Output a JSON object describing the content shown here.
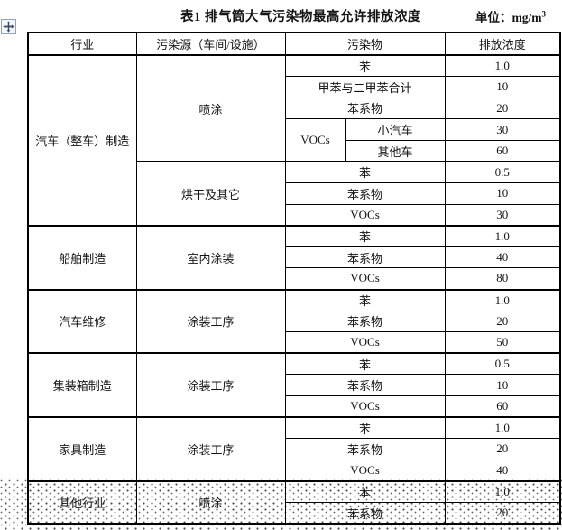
{
  "page": {
    "title": "表1 排气筒大气污染物最高允许排放浓度",
    "unit_prefix": "单位：mg/m",
    "unit_sup": "3"
  },
  "icons": {
    "move_handle": "table-move-handle"
  },
  "table": {
    "headers": [
      "行业",
      "污染源（车间/设施）",
      "污染物",
      "排放浓度"
    ],
    "sections": [
      {
        "industry": "汽车（整车）制造",
        "sources": [
          {
            "name": "喷涂",
            "rows": [
              {
                "pollutant": "苯",
                "value": "1.0"
              },
              {
                "pollutant": "甲苯与二甲苯合计",
                "value": "10"
              },
              {
                "pollutant": "苯系物",
                "value": "20"
              },
              {
                "pollutant": "VOCs",
                "sub": "小汽车",
                "value": "30"
              },
              {
                "pollutant": "VOCs",
                "sub": "其他车",
                "value": "60"
              }
            ]
          },
          {
            "name": "烘干及其它",
            "rows": [
              {
                "pollutant": "苯",
                "value": "0.5"
              },
              {
                "pollutant": "苯系物",
                "value": "10"
              },
              {
                "pollutant": "VOCs",
                "value": "30"
              }
            ]
          }
        ]
      },
      {
        "industry": "船舶制造",
        "sources": [
          {
            "name": "室内涂装",
            "rows": [
              {
                "pollutant": "苯",
                "value": "1.0"
              },
              {
                "pollutant": "苯系物",
                "value": "40"
              },
              {
                "pollutant": "VOCs",
                "value": "80"
              }
            ]
          }
        ]
      },
      {
        "industry": "汽车维修",
        "sources": [
          {
            "name": "涂装工序",
            "rows": [
              {
                "pollutant": "苯",
                "value": "1.0"
              },
              {
                "pollutant": "苯系物",
                "value": "20"
              },
              {
                "pollutant": "VOCs",
                "value": "50"
              }
            ]
          }
        ]
      },
      {
        "industry": "集装箱制造",
        "sources": [
          {
            "name": "涂装工序",
            "rows": [
              {
                "pollutant": "苯",
                "value": "0.5"
              },
              {
                "pollutant": "苯系物",
                "value": "10"
              },
              {
                "pollutant": "VOCs",
                "value": "60"
              }
            ]
          }
        ]
      },
      {
        "industry": "家具制造",
        "sources": [
          {
            "name": "涂装工序",
            "rows": [
              {
                "pollutant": "苯",
                "value": "1.0"
              },
              {
                "pollutant": "苯系物",
                "value": "20"
              },
              {
                "pollutant": "VOCs",
                "value": "40"
              }
            ]
          }
        ]
      },
      {
        "industry": "其他行业",
        "sources": [
          {
            "name": "喷涂",
            "rows": [
              {
                "pollutant": "苯",
                "value": "1.0"
              },
              {
                "pollutant": "苯系物",
                "value": "20"
              }
            ]
          }
        ]
      }
    ]
  }
}
